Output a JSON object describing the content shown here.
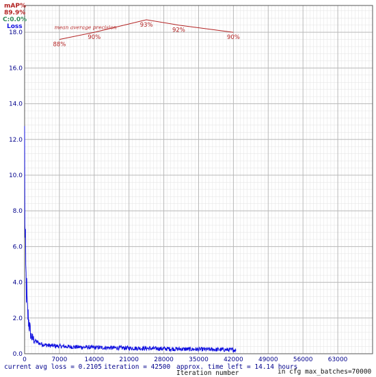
{
  "legend": {
    "map_label": "mAP%",
    "map_value": "89.9%",
    "c_label": "C:0.0%",
    "loss_label": "Loss"
  },
  "footer": {
    "avg_loss": "current avg loss = 0.2105",
    "iteration": "iteration = 42500",
    "time_left": "approx. time left = 14.14 hours",
    "xlabel": "Iteration number",
    "max_batches": "in cfg max_batches=70000"
  },
  "colors": {
    "loss": "#1010e0",
    "map": "#b22222",
    "grid_major": "#b8b8b8",
    "grid_minor": "#e2e2e2",
    "axis_text": "#00008b",
    "c_label": "#2e8b57"
  },
  "chart_data": {
    "type": "line",
    "xlabel": "Iteration number",
    "ylabel": "",
    "xlim": [
      0,
      70000
    ],
    "ylim": [
      0,
      19.5
    ],
    "x_ticks": [
      "0",
      "7000",
      "14000",
      "21000",
      "28000",
      "35000",
      "42000",
      "49000",
      "56000",
      "63000"
    ],
    "y_ticks": [
      "0.0",
      "2.0",
      "4.0",
      "6.0",
      "8.0",
      "10.0",
      "12.0",
      "14.0",
      "16.0",
      "18.0"
    ],
    "grid": true,
    "series": [
      {
        "name": "Loss",
        "color": "#1010e0",
        "x": [
          0,
          100,
          250,
          400,
          550,
          700,
          900,
          1100,
          1300,
          1600,
          2000,
          2500,
          3000,
          4000,
          5000,
          7000,
          10000,
          14000,
          18000,
          22000,
          26000,
          30000,
          34000,
          38000,
          42500
        ],
        "y": [
          11.5,
          6.2,
          4.3,
          3.5,
          2.3,
          2.1,
          1.7,
          1.3,
          1.0,
          0.85,
          0.75,
          0.65,
          0.58,
          0.5,
          0.46,
          0.42,
          0.38,
          0.35,
          0.33,
          0.31,
          0.29,
          0.27,
          0.25,
          0.24,
          0.21
        ]
      },
      {
        "name": "mAP%",
        "color": "#b22222",
        "x": [
          7000,
          14000,
          24500,
          31000,
          42000
        ],
        "y": [
          17.6,
          18.0,
          18.7,
          18.4,
          18.0
        ],
        "labels": [
          "88%",
          "90%",
          "93%",
          "92%",
          "90%"
        ]
      }
    ],
    "annotations": [
      "mean average precision"
    ]
  }
}
